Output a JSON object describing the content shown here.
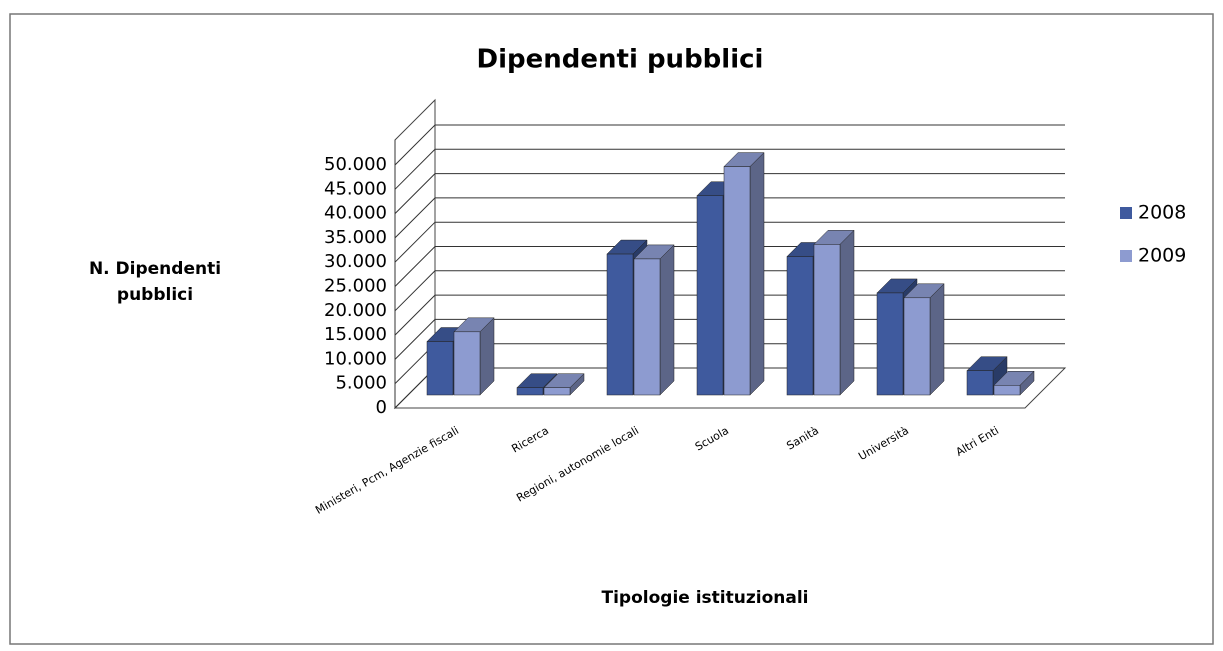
{
  "chart_data": {
    "type": "bar3d",
    "title": "Dipendenti pubblici",
    "x_label": "Tipologie istituzionali",
    "y_label": "N. Dipendenti pubblici",
    "categories": [
      "Ministeri, Pcm, Agenzie fiscali",
      "Ricerca",
      "Regioni, autonomie locali",
      "Scuola",
      "Sanità",
      "Università",
      "Altri Enti"
    ],
    "series": [
      {
        "name": "2008",
        "color": "#3f5a9e",
        "values": [
          11000,
          1500,
          29000,
          41000,
          28500,
          21000,
          5000
        ]
      },
      {
        "name": "2009",
        "color": "#8d9bd0",
        "values": [
          13000,
          1500,
          28000,
          47000,
          31000,
          20000,
          2000
        ]
      }
    ],
    "ylim": [
      0,
      50000
    ],
    "yticks": [
      0,
      {
        "value": 5000,
        "label": "5.000"
      },
      {
        "value": 10000,
        "label": "10.000"
      },
      {
        "value": 15000,
        "label": "15.000"
      },
      {
        "value": 20000,
        "label": "20.000"
      },
      {
        "value": 25000,
        "label": "25.000"
      },
      {
        "value": 30000,
        "label": "30.000"
      },
      {
        "value": 35000,
        "label": "35.000"
      },
      {
        "value": 40000,
        "label": "40.000"
      },
      {
        "value": 45000,
        "label": "45.000"
      },
      {
        "value": 50000,
        "label": "50.000"
      }
    ],
    "grid": true,
    "legend": "right"
  }
}
